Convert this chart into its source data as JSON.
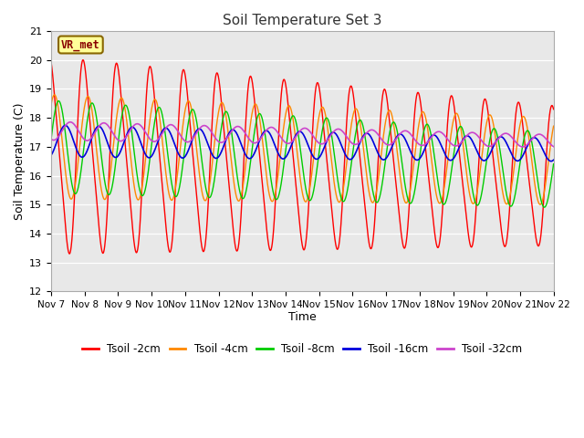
{
  "title": "Soil Temperature Set 3",
  "xlabel": "Time",
  "ylabel": "Soil Temperature (C)",
  "ylim": [
    12.0,
    21.0
  ],
  "yticks": [
    12.0,
    13.0,
    14.0,
    15.0,
    16.0,
    17.0,
    18.0,
    19.0,
    20.0,
    21.0
  ],
  "xtick_labels": [
    "Nov 7",
    "Nov 8",
    "Nov 9",
    "Nov 10",
    "Nov 11",
    "Nov 12",
    "Nov 13",
    "Nov 14",
    "Nov 15",
    "Nov 16",
    "Nov 17",
    "Nov 18",
    "Nov 19",
    "Nov 20",
    "Nov 21",
    "Nov 22"
  ],
  "colors": {
    "Tsoil -2cm": "#ff0000",
    "Tsoil -4cm": "#ff8800",
    "Tsoil -8cm": "#00cc00",
    "Tsoil -16cm": "#0000dd",
    "Tsoil -32cm": "#cc44cc"
  },
  "station_label": "VR_met",
  "fig_bg": "#ffffff",
  "plot_bg": "#e8e8e8"
}
